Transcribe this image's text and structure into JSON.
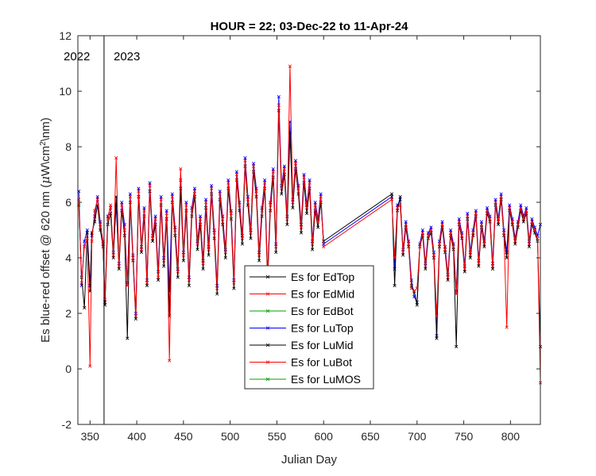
{
  "chart_data": {
    "type": "line",
    "title": "HOUR = 22; 03-Dec-22 to 11-Apr-24",
    "xlabel": "Julian Day",
    "ylabel": "Es blue-red offset @ 620 nm (μW/cm²/nm)",
    "ylabel_parts": {
      "pre": "Es blue-red offset @ 620 nm (",
      "mu": "μ",
      "mid": "W\\cm",
      "sup": "2",
      "post": "\\nm)"
    },
    "xlim": [
      337,
      832
    ],
    "ylim": [
      -2,
      12
    ],
    "xticks": [
      350,
      400,
      450,
      500,
      550,
      600,
      650,
      700,
      750,
      800
    ],
    "yticks": [
      -2,
      0,
      2,
      4,
      6,
      8,
      10,
      12
    ],
    "grid": false,
    "legend_position": "center-bottom",
    "year_divider_x": 365,
    "year_labels": [
      "2022",
      "2023"
    ],
    "series": [
      {
        "name": "Es for EdTop",
        "color": "#000000",
        "values": []
      },
      {
        "name": "Es for EdMid",
        "color": "#ff0000",
        "values": []
      },
      {
        "name": "Es for EdBot",
        "color": "#00a000",
        "values": []
      },
      {
        "name": "Es for LuTop",
        "color": "#0000ff",
        "x": [
          338,
          341,
          344,
          347,
          350,
          352,
          355,
          358,
          361,
          364,
          366,
          369,
          372,
          375,
          378,
          381,
          384,
          387,
          390,
          393,
          396,
          399,
          402,
          405,
          408,
          411,
          414,
          417,
          420,
          423,
          426,
          429,
          432,
          435,
          438,
          441,
          444,
          447,
          450,
          453,
          456,
          459,
          462,
          465,
          468,
          471,
          474,
          477,
          480,
          483,
          486,
          489,
          492,
          495,
          498,
          501,
          504,
          507,
          510,
          513,
          516,
          519,
          522,
          525,
          528,
          531,
          534,
          537,
          540,
          543,
          546,
          549,
          552,
          555,
          558,
          561,
          564,
          567,
          570,
          573,
          576,
          579,
          582,
          585,
          588,
          591,
          594,
          597,
          600,
          673,
          676,
          679,
          682,
          685,
          688,
          691,
          694,
          697,
          700,
          703,
          706,
          709,
          712,
          715,
          718,
          721,
          724,
          727,
          730,
          733,
          736,
          739,
          742,
          745,
          748,
          751,
          754,
          757,
          760,
          763,
          766,
          769,
          772,
          775,
          778,
          781,
          784,
          787,
          790,
          793,
          796,
          799,
          802,
          805,
          808,
          811,
          814,
          817,
          820,
          823,
          826,
          829,
          832
        ],
        "values": [
          6.4,
          3.0,
          4.6,
          5.0,
          3.0,
          4.8,
          5.5,
          6.2,
          5.3,
          4.5,
          2.4,
          5.5,
          5.8,
          4.2,
          5.9,
          3.8,
          6.0,
          5.2,
          3.1,
          6.3,
          4.1,
          2.0,
          6.5,
          4.4,
          5.8,
          3.2,
          6.7,
          4.8,
          5.5,
          3.5,
          6.2,
          4.0,
          5.7,
          2.8,
          6.3,
          5.1,
          3.6,
          6.8,
          4.2,
          6.0,
          3.3,
          5.8,
          6.5,
          4.6,
          5.5,
          3.9,
          6.1,
          4.4,
          6.6,
          5.0,
          3.0,
          6.4,
          5.5,
          4.3,
          6.8,
          5.7,
          3.2,
          7.1,
          6.0,
          4.8,
          7.6,
          6.2,
          5.0,
          7.4,
          6.5,
          4.2,
          5.8,
          6.8,
          3.4,
          6.0,
          7.2,
          4.5,
          9.8,
          6.6,
          7.3,
          5.5,
          8.9,
          6.1,
          7.5,
          6.6,
          5.2,
          7.0,
          5.9,
          6.8,
          4.6,
          6.0,
          5.4,
          6.3,
          4.5,
          6.2,
          3.6,
          5.9,
          6.1,
          4.3,
          5.3,
          4.6,
          3.2,
          2.6,
          2.4,
          4.5,
          5.0,
          3.8,
          4.9,
          5.1,
          4.2,
          1.2,
          4.6,
          5.3,
          4.4,
          3.4,
          5.0,
          4.5,
          2.8,
          5.4,
          4.9,
          3.7,
          5.6,
          4.2,
          5.0,
          5.7,
          3.9,
          5.3,
          4.6,
          5.8,
          5.5,
          3.8,
          6.1,
          5.4,
          6.3,
          5.0,
          4.2,
          5.9,
          5.4,
          4.7,
          5.3,
          5.9,
          5.5,
          5.8,
          4.6,
          5.4,
          5.1,
          4.8,
          5.2
        ]
      },
      {
        "name": "Es for LuMid",
        "color": "#000000",
        "x": [
          338,
          341,
          344,
          347,
          350,
          352,
          355,
          358,
          361,
          364,
          366,
          369,
          372,
          375,
          378,
          381,
          384,
          387,
          390,
          393,
          396,
          399,
          402,
          405,
          408,
          411,
          414,
          417,
          420,
          423,
          426,
          429,
          432,
          435,
          438,
          441,
          444,
          447,
          450,
          453,
          456,
          459,
          462,
          465,
          468,
          471,
          474,
          477,
          480,
          483,
          486,
          489,
          492,
          495,
          498,
          501,
          504,
          507,
          510,
          513,
          516,
          519,
          522,
          525,
          528,
          531,
          534,
          537,
          540,
          543,
          546,
          549,
          552,
          555,
          558,
          561,
          564,
          567,
          570,
          573,
          576,
          579,
          582,
          585,
          588,
          591,
          594,
          597,
          600,
          673,
          676,
          679,
          682,
          685,
          688,
          691,
          694,
          697,
          700,
          703,
          706,
          709,
          712,
          715,
          718,
          721,
          724,
          727,
          730,
          733,
          736,
          739,
          742,
          745,
          748,
          751,
          754,
          757,
          760,
          763,
          766,
          769,
          772,
          775,
          778,
          781,
          784,
          787,
          790,
          793,
          796,
          799,
          802,
          805,
          808,
          811,
          814,
          817,
          820,
          823,
          826,
          829,
          832
        ],
        "values": [
          5.9,
          3.3,
          2.2,
          4.9,
          2.8,
          4.9,
          5.3,
          5.9,
          5.0,
          4.4,
          2.3,
          5.2,
          5.6,
          4.0,
          6.2,
          3.6,
          5.7,
          4.8,
          1.1,
          6.0,
          3.9,
          1.8,
          6.2,
          4.2,
          5.5,
          3.0,
          6.4,
          4.6,
          5.2,
          3.2,
          5.9,
          3.7,
          5.4,
          1.9,
          6.0,
          4.8,
          3.3,
          6.5,
          3.9,
          5.7,
          3.0,
          5.5,
          6.2,
          4.3,
          5.2,
          3.6,
          5.8,
          4.1,
          6.3,
          4.7,
          2.7,
          6.1,
          5.2,
          4.0,
          6.5,
          5.4,
          2.9,
          6.8,
          5.7,
          4.5,
          7.3,
          5.9,
          4.7,
          7.1,
          6.2,
          3.9,
          5.5,
          6.5,
          3.1,
          5.7,
          6.9,
          4.2,
          9.3,
          6.3,
          7.0,
          5.2,
          8.5,
          5.8,
          7.2,
          6.3,
          4.9,
          6.7,
          5.6,
          6.5,
          4.3,
          5.7,
          5.1,
          6.0,
          4.6,
          6.3,
          3.0,
          5.7,
          6.2,
          4.1,
          5.1,
          4.4,
          3.0,
          2.8,
          2.3,
          4.4,
          4.8,
          3.6,
          4.7,
          4.9,
          4.0,
          1.1,
          4.4,
          5.1,
          4.2,
          3.2,
          4.8,
          4.3,
          0.8,
          5.2,
          4.7,
          3.5,
          5.4,
          4.0,
          4.8,
          5.5,
          3.7,
          5.1,
          4.4,
          5.6,
          5.3,
          3.6,
          5.9,
          5.2,
          6.1,
          4.8,
          4.0,
          5.7,
          5.2,
          4.5,
          5.1,
          5.7,
          5.3,
          5.6,
          4.4,
          5.2,
          4.9,
          4.6,
          0.8
        ]
      },
      {
        "name": "Es for LuBot",
        "color": "#ff0000",
        "x": [
          338,
          341,
          344,
          347,
          350,
          352,
          355,
          358,
          361,
          364,
          366,
          369,
          372,
          375,
          378,
          381,
          384,
          387,
          390,
          393,
          396,
          399,
          402,
          405,
          408,
          411,
          414,
          417,
          420,
          423,
          426,
          429,
          432,
          435,
          438,
          441,
          444,
          447,
          450,
          453,
          456,
          459,
          462,
          465,
          468,
          471,
          474,
          477,
          480,
          483,
          486,
          489,
          492,
          495,
          498,
          501,
          504,
          507,
          510,
          513,
          516,
          519,
          522,
          525,
          528,
          531,
          534,
          537,
          540,
          543,
          546,
          549,
          552,
          555,
          558,
          561,
          564,
          567,
          570,
          573,
          576,
          579,
          582,
          585,
          588,
          591,
          594,
          597,
          600,
          673,
          676,
          679,
          682,
          685,
          688,
          691,
          694,
          697,
          700,
          703,
          706,
          709,
          712,
          715,
          718,
          721,
          724,
          727,
          730,
          733,
          736,
          739,
          742,
          745,
          748,
          751,
          754,
          757,
          760,
          763,
          766,
          769,
          772,
          775,
          778,
          781,
          784,
          787,
          790,
          793,
          796,
          799,
          802,
          805,
          808,
          811,
          814,
          817,
          820,
          823,
          826,
          829,
          832
        ],
        "values": [
          6.1,
          3.1,
          4.4,
          4.7,
          0.1,
          4.6,
          5.7,
          6.1,
          5.2,
          4.6,
          2.5,
          5.4,
          5.9,
          4.1,
          7.6,
          3.7,
          5.9,
          5.0,
          3.0,
          6.2,
          4.0,
          1.9,
          6.4,
          4.3,
          5.7,
          3.1,
          6.6,
          4.7,
          5.4,
          3.3,
          6.1,
          3.9,
          5.6,
          0.3,
          6.2,
          5.0,
          3.5,
          7.2,
          4.1,
          5.9,
          3.2,
          5.7,
          6.4,
          4.5,
          5.4,
          3.8,
          6.0,
          4.3,
          6.5,
          4.9,
          2.9,
          6.3,
          5.4,
          4.2,
          6.7,
          5.6,
          3.1,
          7.0,
          5.9,
          4.7,
          7.5,
          6.1,
          4.9,
          7.3,
          6.4,
          4.1,
          5.7,
          6.7,
          3.3,
          5.9,
          7.1,
          4.4,
          9.5,
          6.5,
          7.2,
          5.4,
          10.9,
          6.0,
          7.4,
          6.5,
          5.1,
          6.9,
          5.8,
          6.7,
          4.5,
          5.9,
          5.3,
          6.2,
          4.4,
          6.1,
          4.0,
          5.8,
          5.9,
          4.2,
          5.2,
          4.5,
          2.9,
          2.8,
          2.9,
          4.4,
          4.9,
          3.7,
          4.8,
          5.0,
          4.1,
          1.9,
          4.5,
          5.2,
          4.3,
          3.3,
          4.9,
          4.4,
          2.7,
          5.3,
          4.8,
          3.6,
          5.5,
          4.1,
          4.9,
          5.6,
          3.8,
          5.2,
          4.5,
          5.7,
          5.4,
          3.7,
          6.0,
          5.3,
          6.2,
          4.9,
          1.5,
          5.8,
          5.3,
          4.6,
          5.2,
          5.8,
          5.4,
          5.7,
          4.5,
          5.3,
          5.0,
          4.7,
          -0.5
        ]
      },
      {
        "name": "Es for LuMOS",
        "color": "#00a000",
        "values": []
      }
    ]
  }
}
